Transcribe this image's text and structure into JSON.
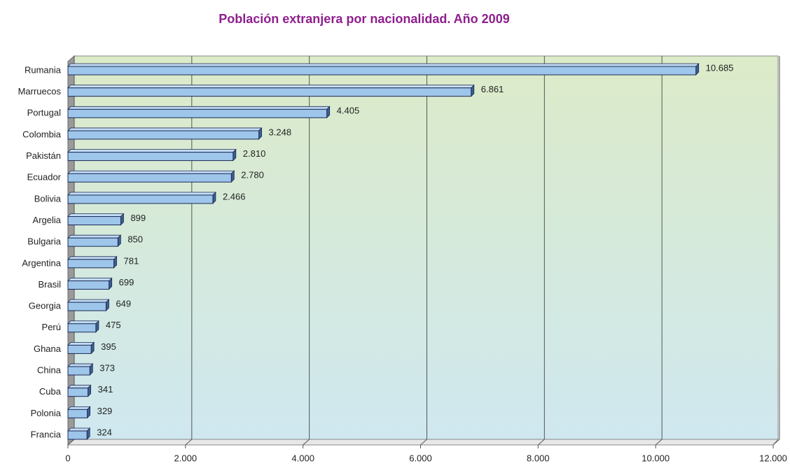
{
  "chart_data": {
    "type": "bar",
    "orientation": "horizontal",
    "title": "Población extranjera por nacionalidad. Año 2009",
    "categories": [
      "Rumania",
      "Marruecos",
      "Portugal",
      "Colombia",
      "Pakistán",
      "Ecuador",
      "Bolivia",
      "Argelia",
      "Bulgaria",
      "Argentina",
      "Brasil",
      "Georgia",
      "Perú",
      "Ghana",
      "China",
      "Cuba",
      "Polonia",
      "Francia"
    ],
    "values": [
      10685,
      6861,
      4405,
      3248,
      2810,
      2780,
      2466,
      899,
      850,
      781,
      699,
      649,
      475,
      395,
      373,
      341,
      329,
      324
    ],
    "value_labels": [
      "10.685",
      "6.861",
      "4.405",
      "3.248",
      "2.810",
      "2.780",
      "2.466",
      "899",
      "850",
      "781",
      "699",
      "649",
      "475",
      "395",
      "373",
      "341",
      "329",
      "324"
    ],
    "color": "#9ec5ea",
    "xlim": [
      0,
      12000
    ],
    "xticks": [
      0,
      {
        "value": 2000,
        "label": "2.000"
      },
      {
        "value": 4000,
        "label": "4.000"
      },
      {
        "value": 6000,
        "label": "6.000"
      },
      {
        "value": 8000,
        "label": "8.000"
      },
      {
        "value": 10000,
        "label": "10.000"
      },
      {
        "value": 12000,
        "label": "12.000"
      }
    ],
    "grid": true
  }
}
